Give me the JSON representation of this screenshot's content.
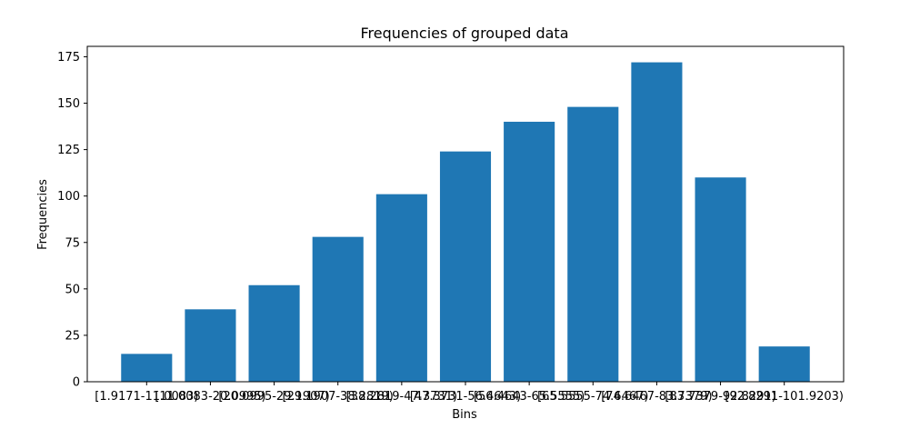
{
  "chart_data": {
    "type": "bar",
    "title": "Frequencies of grouped data",
    "xlabel": "Bins",
    "ylabel": "Frequencies",
    "categories": [
      "[1.9171-11.0083)",
      "[11.0083-20.0995)",
      "[20.0995-29.1907)",
      "[29.1907-38.2819)",
      "[38.2819-47.3731)",
      "[47.3731-56.4643)",
      "[56.4643-65.5555)",
      "[65.5555-74.6467)",
      "[74.6467-83.7379)",
      "[83.7379-92.8291)",
      "[92.8291-101.9203)"
    ],
    "values": [
      15,
      39,
      52,
      78,
      101,
      124,
      140,
      148,
      172,
      110,
      19
    ],
    "ylim": [
      0,
      180.6
    ],
    "yticks": [
      0,
      25,
      50,
      75,
      100,
      125,
      150,
      175
    ],
    "bar_color": "#1f77b4",
    "grid": false
  }
}
